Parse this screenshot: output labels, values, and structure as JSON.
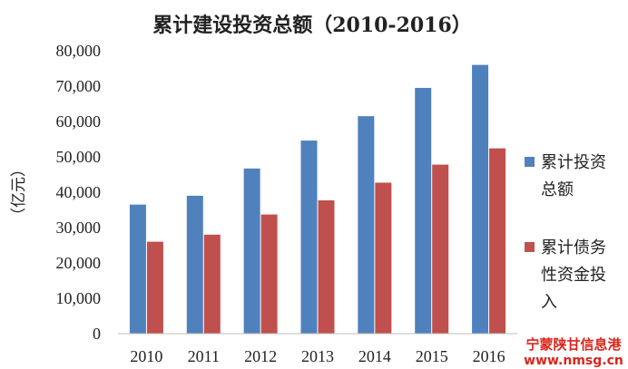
{
  "chart_data": {
    "type": "bar",
    "title": "累计建设投资总额（2010-2016）",
    "ylabel": "（亿元）",
    "xlabel": "",
    "categories": [
      "2010",
      "2011",
      "2012",
      "2013",
      "2014",
      "2015",
      "2016"
    ],
    "series": [
      {
        "name": "累计投资总额",
        "color": "#4f81bd",
        "values": [
          36500,
          39000,
          46700,
          54600,
          61500,
          69500,
          76000
        ]
      },
      {
        "name": "累计债务性资金投入",
        "color": "#c0504d",
        "values": [
          26000,
          28000,
          33700,
          37700,
          42700,
          47800,
          52400
        ]
      }
    ],
    "ylim": [
      0,
      80000
    ],
    "yticks": [
      "0",
      "10,000",
      "20,000",
      "30,000",
      "40,000",
      "50,000",
      "60,000",
      "70,000",
      "80,000"
    ],
    "grid": false,
    "legend": {
      "position": "right",
      "entries": [
        {
          "lines": [
            "累计投资",
            "总额"
          ]
        },
        {
          "lines": [
            "累计债务",
            "性资金投",
            "入"
          ]
        }
      ]
    }
  },
  "watermark": {
    "name": "宁蒙陕甘信息港",
    "url": "www.nmsg.cn"
  }
}
